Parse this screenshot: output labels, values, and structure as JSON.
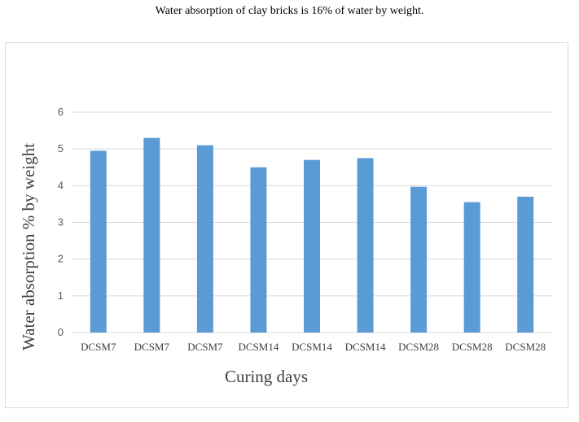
{
  "caption": "Water absorption of clay bricks is 16% of water by weight.",
  "chart_data": {
    "type": "bar",
    "categories": [
      "DCSM7",
      "DCSM7",
      "DCSM7",
      "DCSM14",
      "DCSM14",
      "DCSM14",
      "DCSM28",
      "DCSM28",
      "DCSM28"
    ],
    "values": [
      4.95,
      5.3,
      5.1,
      4.5,
      4.7,
      4.75,
      3.97,
      3.55,
      3.7
    ],
    "title": "",
    "xlabel": "Curing days",
    "ylabel": "Water absorption % by weight",
    "ylim": [
      0,
      6
    ],
    "yticks": [
      0,
      1,
      2,
      3,
      4,
      5,
      6
    ],
    "grid": true,
    "legend": "none",
    "bar_color": "#5b9bd5",
    "grid_color": "#d9d9d9"
  }
}
